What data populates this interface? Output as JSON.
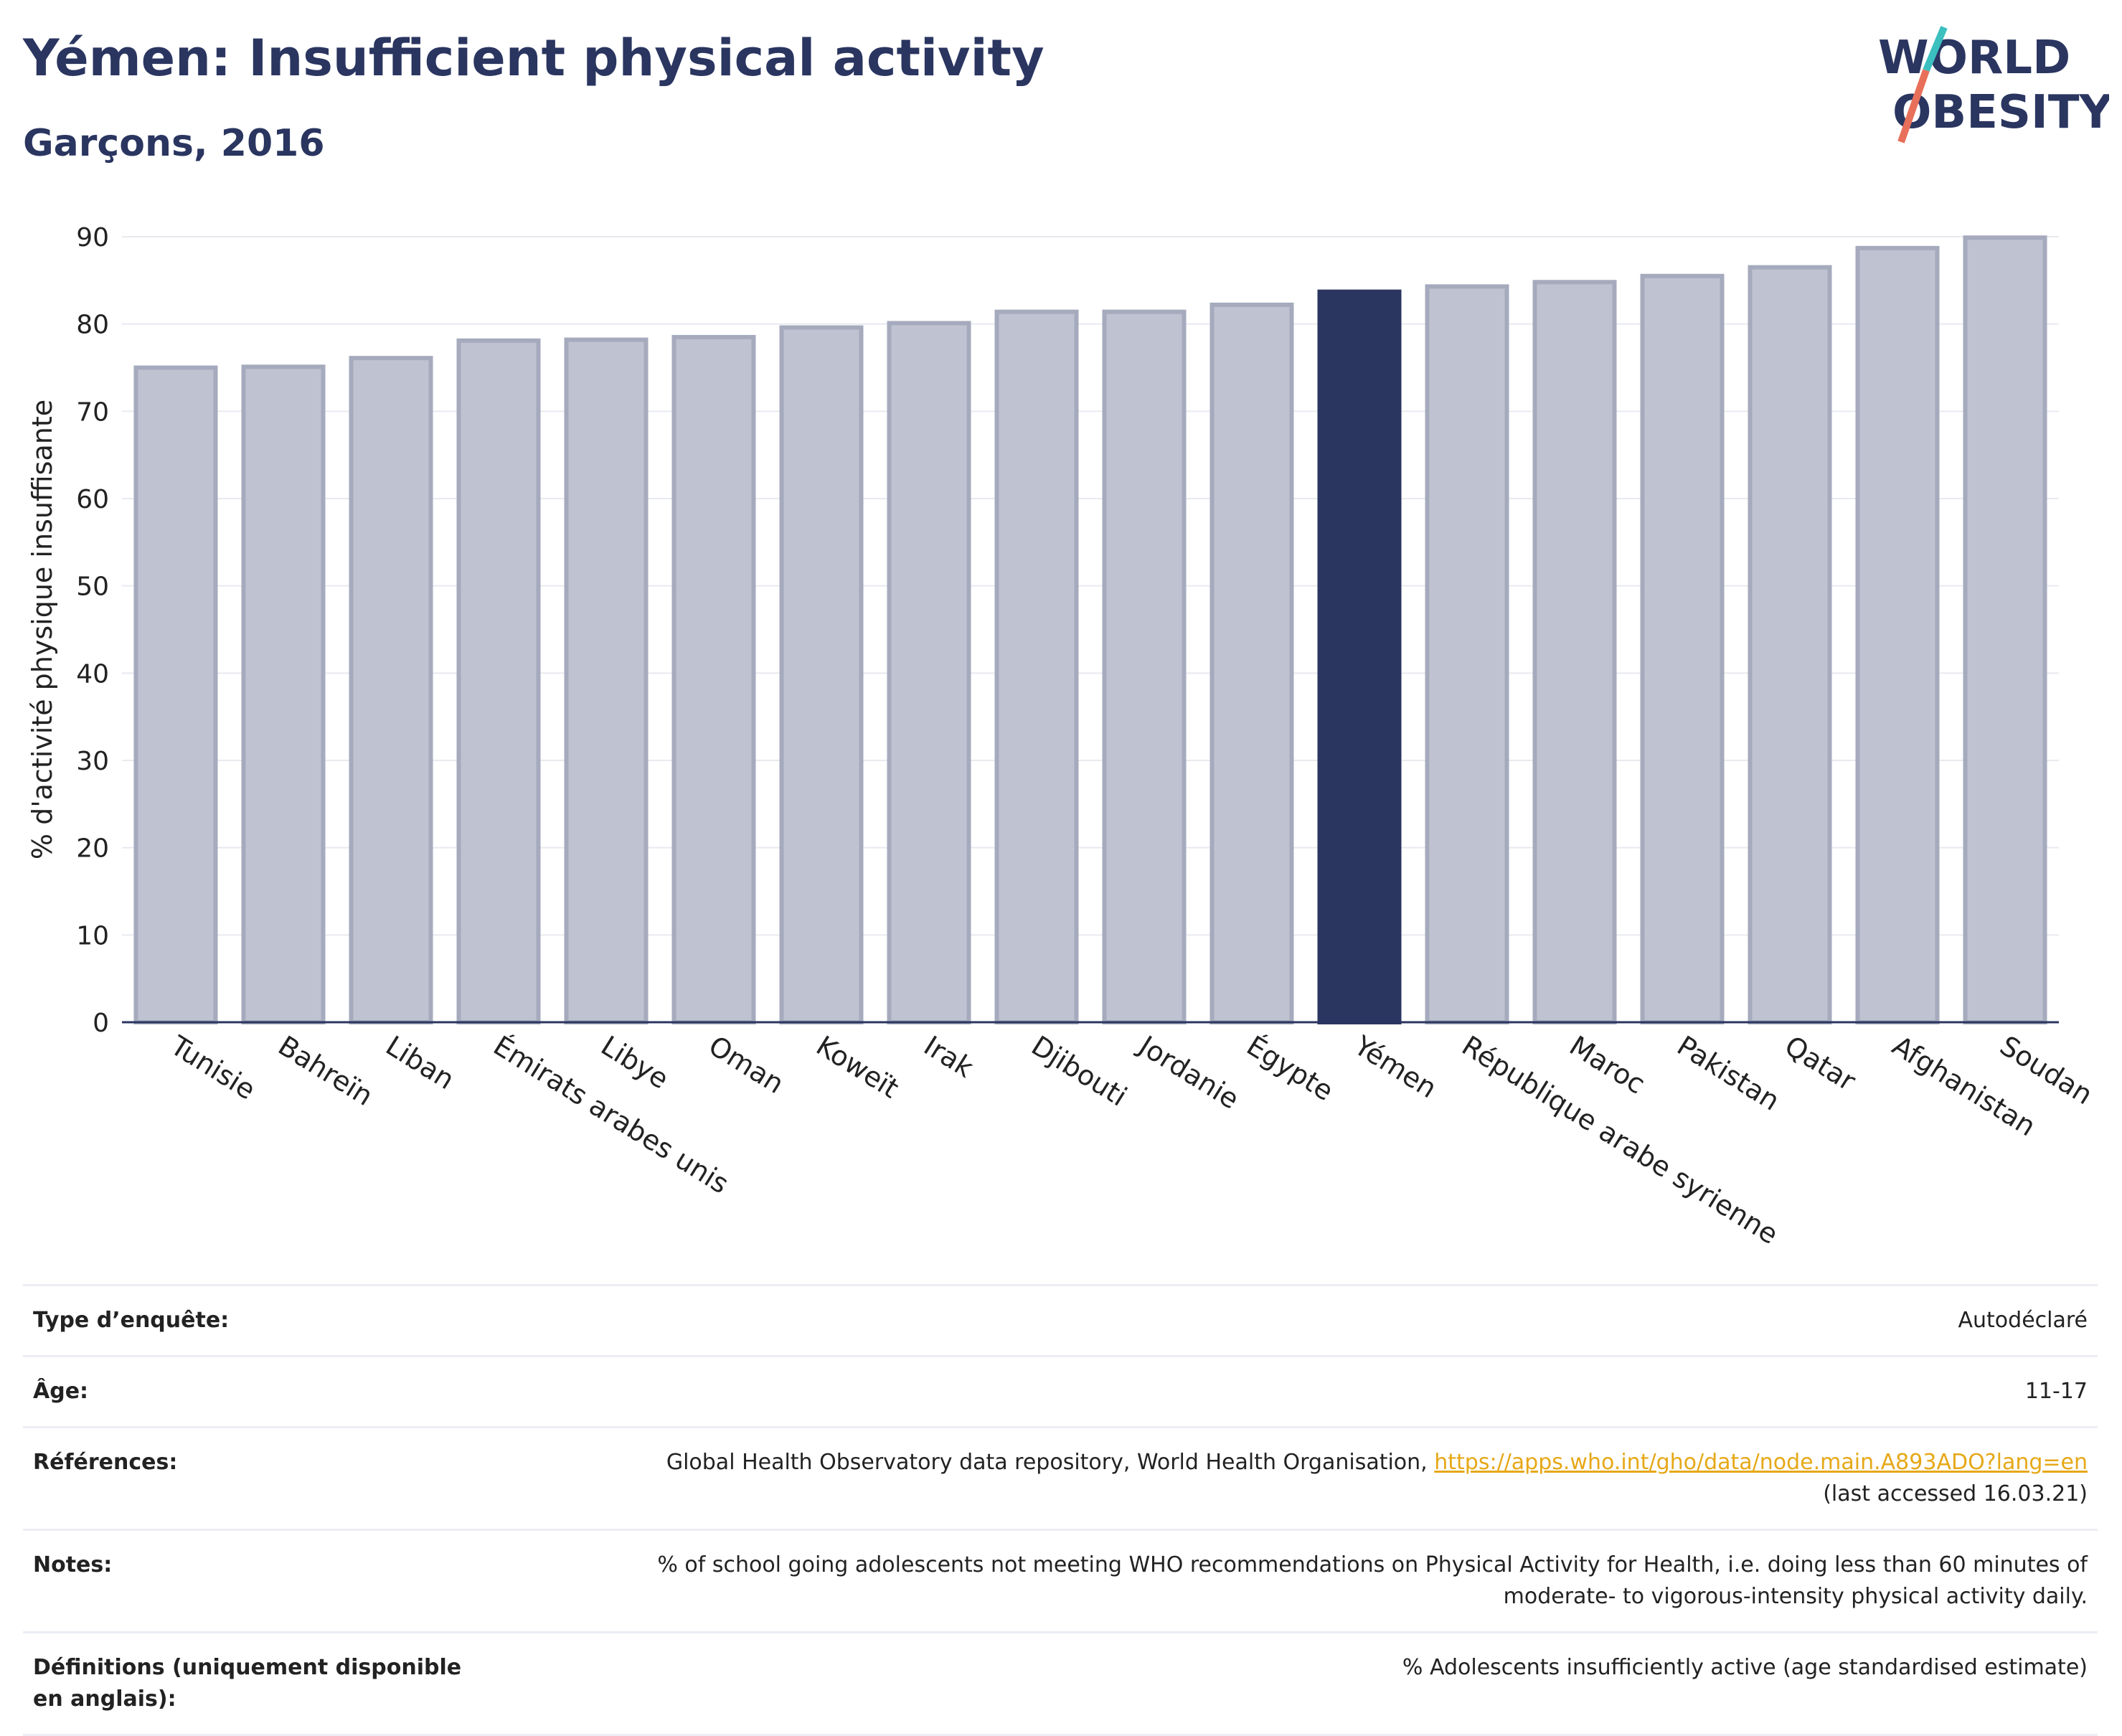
{
  "header": {
    "title": "Yémen: Insufficient physical activity",
    "subtitle": "Garçons, 2016"
  },
  "logo": {
    "line1": "WORLD",
    "line2": "OBESITY",
    "accent_colors": [
      "#3bbfbf",
      "#e8705a"
    ]
  },
  "colors": {
    "highlight": "#2a3560",
    "bar": "#bfc2d0",
    "bar_edge": "#a5aabd",
    "axis": "#2a3560"
  },
  "chart_data": {
    "type": "bar",
    "categories": [
      "Tunisie",
      "Bahreïn",
      "Liban",
      "Émirats arabes unis",
      "Libye",
      "Oman",
      "Koweït",
      "Irak",
      "Djibouti",
      "Jordanie",
      "Égypte",
      "Yémen",
      "République arabe syrienne",
      "Maroc",
      "Pakistan",
      "Qatar",
      "Afghanistan",
      "Soudan"
    ],
    "values": [
      75.0,
      75.1,
      76.1,
      78.1,
      78.2,
      78.5,
      79.6,
      80.1,
      81.4,
      81.4,
      82.2,
      83.7,
      84.3,
      84.8,
      85.5,
      86.5,
      88.7,
      89.9
    ],
    "highlight": "Yémen",
    "ylabel": "% d'activité physique insuffisante",
    "ylim": [
      0,
      90
    ],
    "yticks": [
      0,
      10,
      20,
      30,
      40,
      50,
      60,
      70,
      80,
      90
    ],
    "grid": true
  },
  "info": [
    {
      "key": "Type d’enquête:",
      "value": "Autodéclaré"
    },
    {
      "key": "Âge:",
      "value": "11-17"
    },
    {
      "key": "Références:",
      "value": "Global Health Observatory data repository, World Health Organisation,",
      "link": "https://apps.who.int/gho/data/node.main.A893ADO?lang=en",
      "value2": "(last accessed 16.03.21)"
    },
    {
      "key": "Notes:",
      "value": "% of school going adolescents not meeting WHO recommendations on Physical Activity for Health, i.e. doing less than 60 minutes of",
      "value2": "moderate- to vigorous-intensity physical activity daily."
    },
    {
      "key": "Définitions (uniquement disponible en anglais):",
      "value": "% Adolescents insufficiently active (age standardised estimate)"
    }
  ]
}
